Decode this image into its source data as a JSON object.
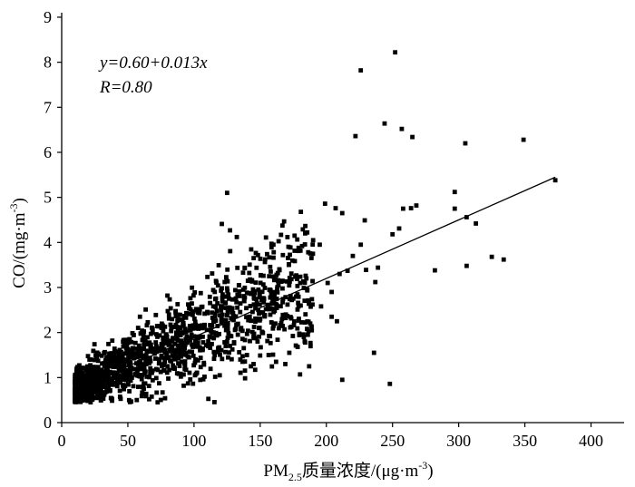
{
  "chart_data": {
    "type": "scatter",
    "title": "",
    "xlabel": {
      "prefix": "PM",
      "subscript": "2.5",
      "suffix": "质量浓度/(μg·m",
      "superscript": "-3",
      "close": ")"
    },
    "ylabel": {
      "prefix": "CO/(mg·m",
      "superscript": "-3",
      "close": ")"
    },
    "xlim": [
      0,
      425
    ],
    "ylim": [
      0,
      9.1
    ],
    "xticks": [
      0,
      50,
      100,
      150,
      200,
      250,
      300,
      350,
      400
    ],
    "yticks": [
      0,
      1,
      2,
      3,
      4,
      5,
      6,
      7,
      8,
      9
    ],
    "grid": false,
    "annotations": {
      "equation": "y=0.60+0.013x",
      "r": "R=0.80"
    },
    "fit_line": {
      "intercept": 0.6,
      "slope": 0.013,
      "x_range": [
        10,
        373
      ]
    },
    "marker_color": "#000000",
    "points": [
      [
        373,
        5.38
      ],
      [
        349,
        6.28
      ],
      [
        305,
        6.2
      ],
      [
        297,
        5.12
      ],
      [
        297,
        4.75
      ],
      [
        306,
        4.56
      ],
      [
        313,
        4.42
      ],
      [
        306,
        3.48
      ],
      [
        325,
        3.68
      ],
      [
        334,
        3.62
      ],
      [
        282,
        3.38
      ],
      [
        252,
        8.22
      ],
      [
        226,
        7.82
      ],
      [
        244,
        6.64
      ],
      [
        257,
        6.52
      ],
      [
        265,
        6.34
      ],
      [
        222,
        6.36
      ],
      [
        268,
        4.82
      ],
      [
        264,
        4.76
      ],
      [
        258,
        4.75
      ],
      [
        229,
        4.49
      ],
      [
        250,
        4.18
      ],
      [
        255,
        4.31
      ],
      [
        125,
        5.1
      ],
      [
        121,
        4.41
      ],
      [
        199,
        4.86
      ],
      [
        207,
        4.76
      ],
      [
        212,
        4.65
      ],
      [
        239,
        3.44
      ],
      [
        237,
        3.12
      ],
      [
        230,
        3.39
      ],
      [
        236,
        1.55
      ],
      [
        212,
        0.95
      ],
      [
        248,
        0.86
      ],
      [
        226,
        3.95
      ],
      [
        216,
        3.37
      ],
      [
        196,
        2.58
      ],
      [
        204,
        2.35
      ],
      [
        208,
        2.25
      ],
      [
        189,
        2.05
      ],
      [
        183,
        1.9
      ],
      [
        186,
        1.95
      ],
      [
        172,
        1.55
      ],
      [
        187,
        1.25
      ],
      [
        169,
        1.3
      ],
      [
        162,
        1.35
      ],
      [
        210,
        3.3
      ],
      [
        220,
        3.7
      ],
      [
        184,
        4.2
      ],
      [
        190,
        4.05
      ],
      [
        179,
        3.88
      ],
      [
        195,
        3.95
      ],
      [
        176,
        4.15
      ],
      [
        201,
        3.1
      ],
      [
        204,
        2.9
      ],
      [
        149,
        2.1
      ],
      [
        157,
        2.95
      ],
      [
        160,
        3.95
      ],
      [
        148,
        1.8
      ],
      [
        140,
        1.5
      ],
      [
        135,
        1.4
      ],
      [
        145,
        1.3
      ],
      [
        143,
        1.25
      ]
    ]
  }
}
